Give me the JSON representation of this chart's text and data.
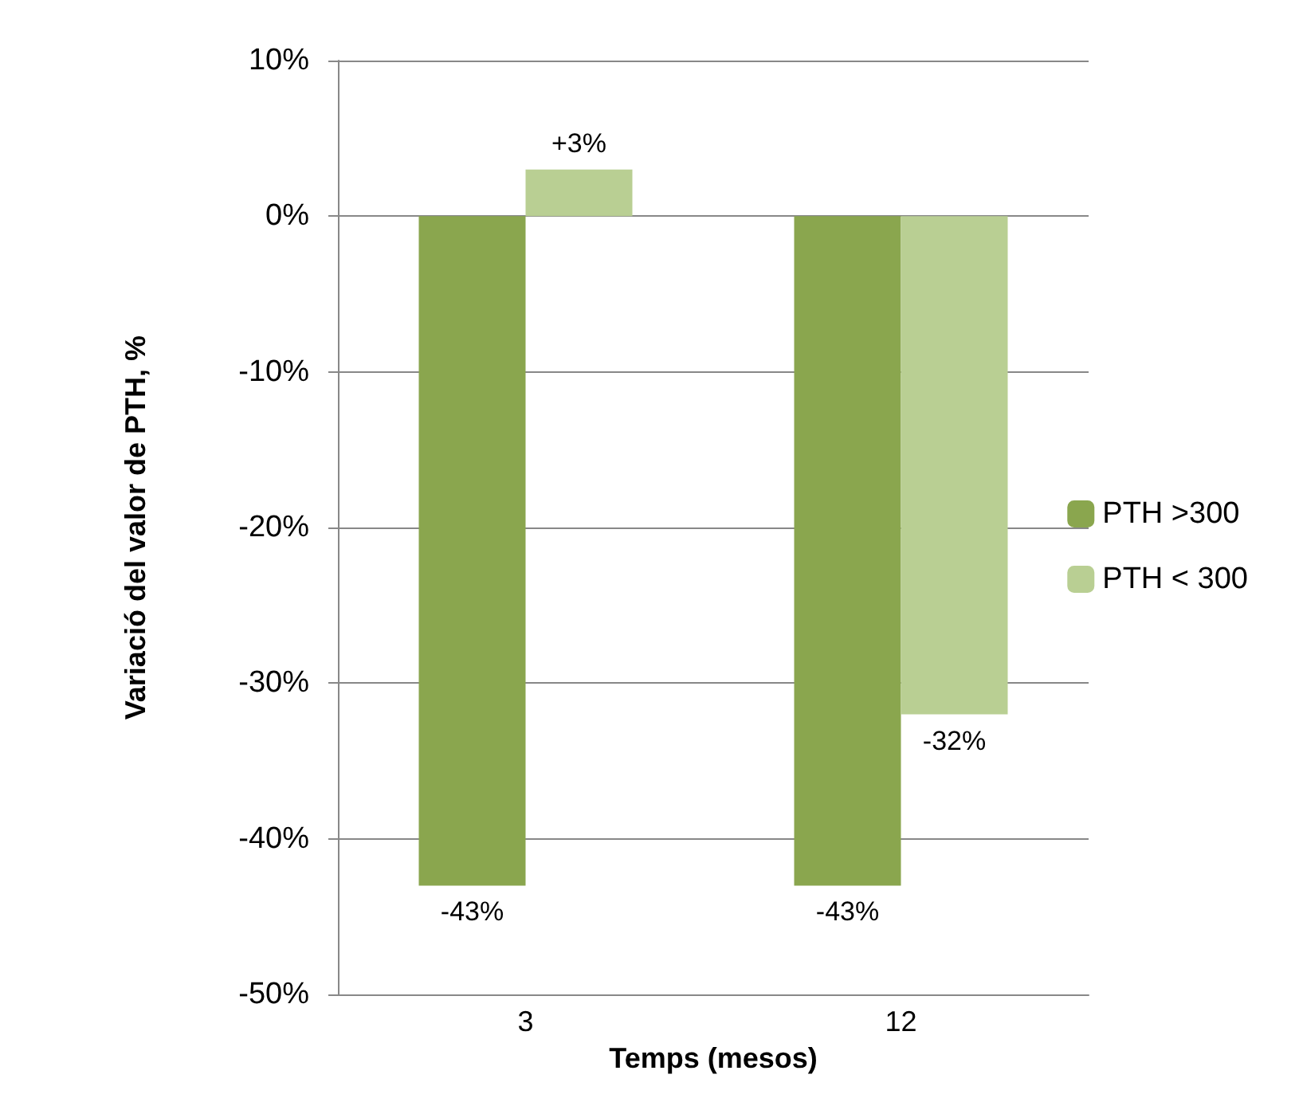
{
  "chart_data": {
    "type": "bar",
    "xlabel": "Temps (mesos)",
    "ylabel": "Variació del valor de PTH, %",
    "categories": [
      "3",
      "12"
    ],
    "series": [
      {
        "name": "PTH >300",
        "color": "#8aa64e",
        "values": [
          -43,
          -43
        ],
        "value_labels": [
          "-43%",
          "-43%"
        ]
      },
      {
        "name": "PTH < 300",
        "color": "#b9cf93",
        "values": [
          3,
          -32
        ],
        "value_labels": [
          "+3%",
          "-32%"
        ]
      }
    ],
    "ylim": [
      -50,
      10
    ],
    "yticks": [
      {
        "value": -50,
        "label": "-50%"
      },
      {
        "value": -40,
        "label": "-40%"
      },
      {
        "value": -30,
        "label": "-30%"
      },
      {
        "value": -20,
        "label": "-20%"
      },
      {
        "value": -10,
        "label": "-10%"
      },
      {
        "value": 0,
        "label": "0%"
      },
      {
        "value": 10,
        "label": "10%"
      }
    ],
    "grid": "y",
    "legend": "right"
  }
}
